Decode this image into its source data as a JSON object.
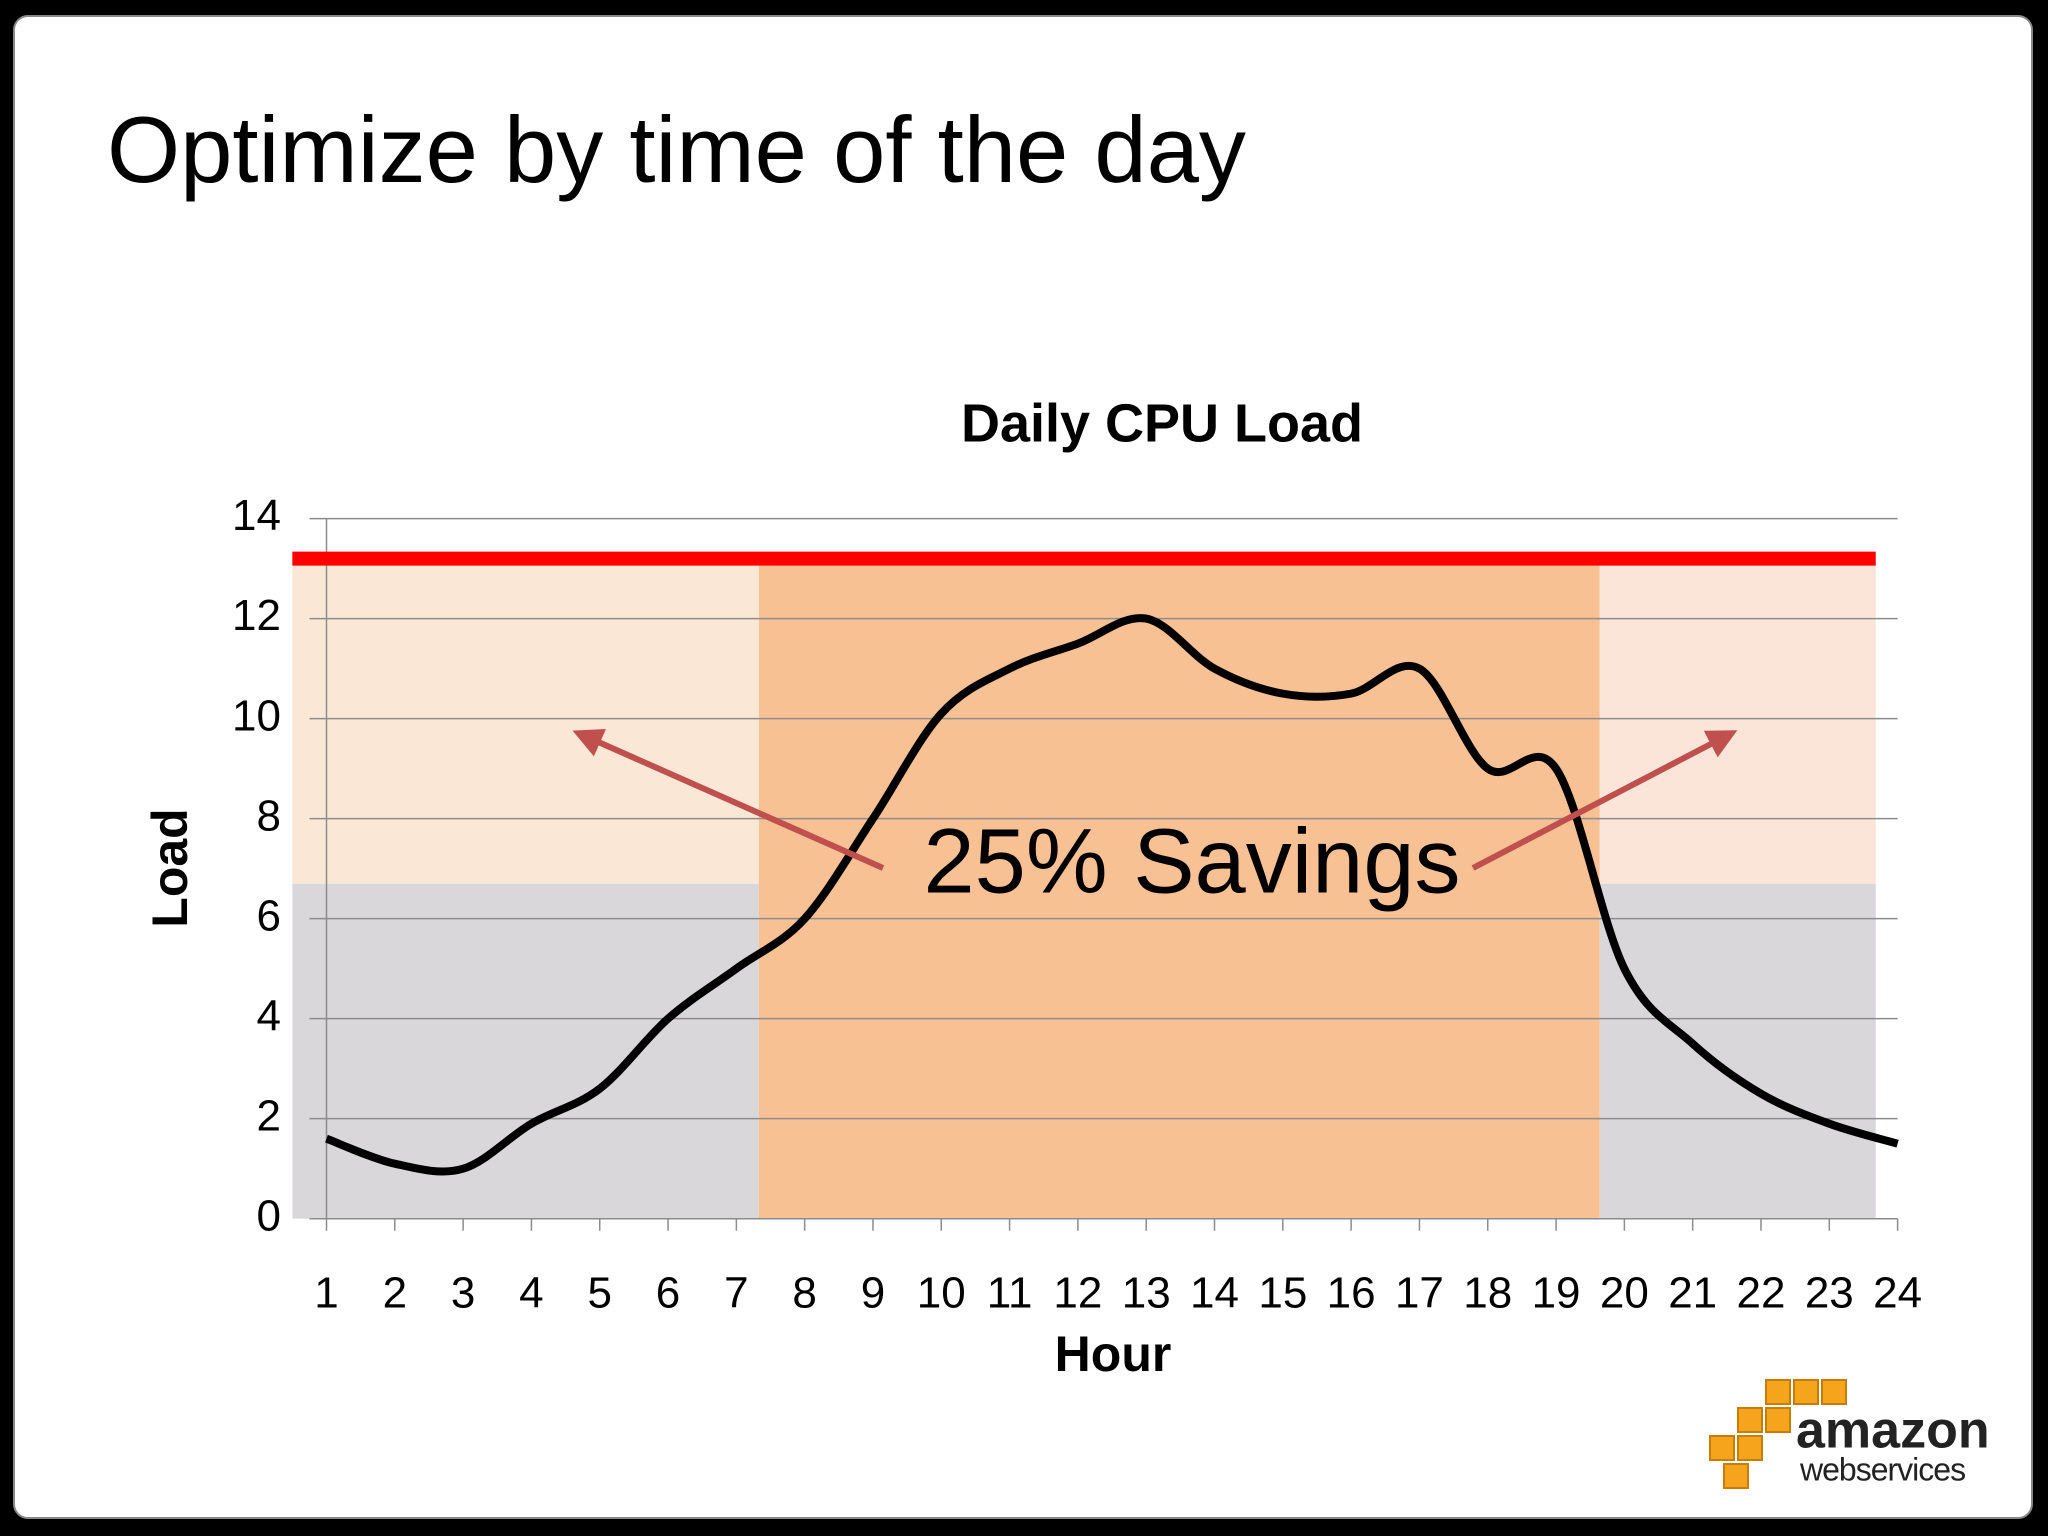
{
  "slide_title": "Optimize by time of the day",
  "chart_data": {
    "type": "line",
    "title": "Daily CPU Load",
    "xlabel": "Hour",
    "ylabel": "Load",
    "annotation": "25% Savings",
    "x": [
      1,
      2,
      3,
      4,
      5,
      6,
      7,
      8,
      9,
      10,
      11,
      12,
      13,
      14,
      15,
      16,
      17,
      18,
      19,
      20,
      21,
      22,
      23,
      24
    ],
    "series": [
      {
        "color": "#000000",
        "values": [
          1.6,
          1.1,
          1.0,
          1.9,
          2.6,
          4.0,
          5.0,
          6.0,
          8.0,
          10.1,
          11.0,
          11.5,
          12.0,
          11.0,
          10.5,
          10.5,
          11.0,
          9.0,
          9.0,
          5.0,
          3.5,
          2.5,
          1.9,
          1.5
        ]
      }
    ],
    "xlim": [
      1,
      24
    ],
    "xticks": [
      1,
      2,
      3,
      4,
      5,
      6,
      7,
      8,
      9,
      10,
      11,
      12,
      13,
      14,
      15,
      16,
      17,
      18,
      19,
      20,
      21,
      22,
      23,
      24
    ],
    "ylim": [
      0,
      14
    ],
    "yticks": [
      0,
      2,
      4,
      6,
      8,
      10,
      12,
      14
    ],
    "grid": true,
    "capacity_line": {
      "value": 13.2,
      "x": [
        0.5,
        23.68
      ],
      "color": "#ff0000"
    },
    "shaded_regions": [
      {
        "x": [
          0.5,
          7.33
        ],
        "y": [
          0,
          6.7
        ],
        "color": "#d9d7da"
      },
      {
        "x": [
          0.5,
          7.33
        ],
        "y": [
          6.7,
          13.1
        ],
        "color": "#fbe7d6"
      },
      {
        "x": [
          7.33,
          19.64
        ],
        "y": [
          0,
          13.1
        ],
        "color": "#f8c194"
      },
      {
        "x": [
          19.64,
          23.68
        ],
        "y": [
          0,
          6.7
        ],
        "color": "#d9d7da"
      },
      {
        "x": [
          19.64,
          23.68
        ],
        "y": [
          6.7,
          13.1
        ],
        "color": "#fbe5d8"
      }
    ]
  },
  "logo": {
    "name": "amazon",
    "tagline": "webservices"
  }
}
